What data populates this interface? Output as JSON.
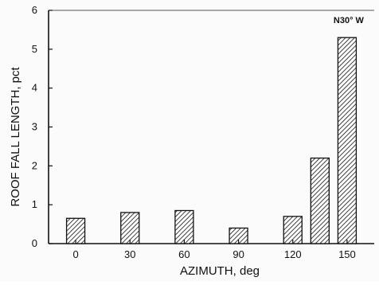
{
  "chart_data": {
    "type": "bar",
    "title": "",
    "xlabel": "AZIMUTH, deg",
    "ylabel": "ROOF FALL LENGTH, pct",
    "ylim": [
      0,
      6
    ],
    "yticks": [
      "0",
      "1",
      "2",
      "3",
      "4",
      "5",
      "6"
    ],
    "xticks": [
      {
        "value": 0,
        "label": "0"
      },
      {
        "value": 30,
        "label": "30"
      },
      {
        "value": 60,
        "label": "60"
      },
      {
        "value": 90,
        "label": "90"
      },
      {
        "value": 120,
        "label": "120"
      },
      {
        "value": 150,
        "label": "150"
      }
    ],
    "xlim": [
      -15,
      165
    ],
    "bars": [
      {
        "azimuth": 0,
        "value": 0.65
      },
      {
        "azimuth": 30,
        "value": 0.8
      },
      {
        "azimuth": 60,
        "value": 0.85
      },
      {
        "azimuth": 90,
        "value": 0.4
      },
      {
        "azimuth": 120,
        "value": 0.7
      },
      {
        "azimuth": 135,
        "value": 2.2
      },
      {
        "azimuth": 150,
        "value": 5.3
      }
    ],
    "annotation": {
      "text": "N30° W",
      "at_azimuth": 150,
      "at_value": 5.75
    },
    "grid": false,
    "legend": "none",
    "bar_fill": "diagonal-hatch",
    "colors": {
      "ink": "#111111",
      "background": "#fbfbfb"
    }
  }
}
